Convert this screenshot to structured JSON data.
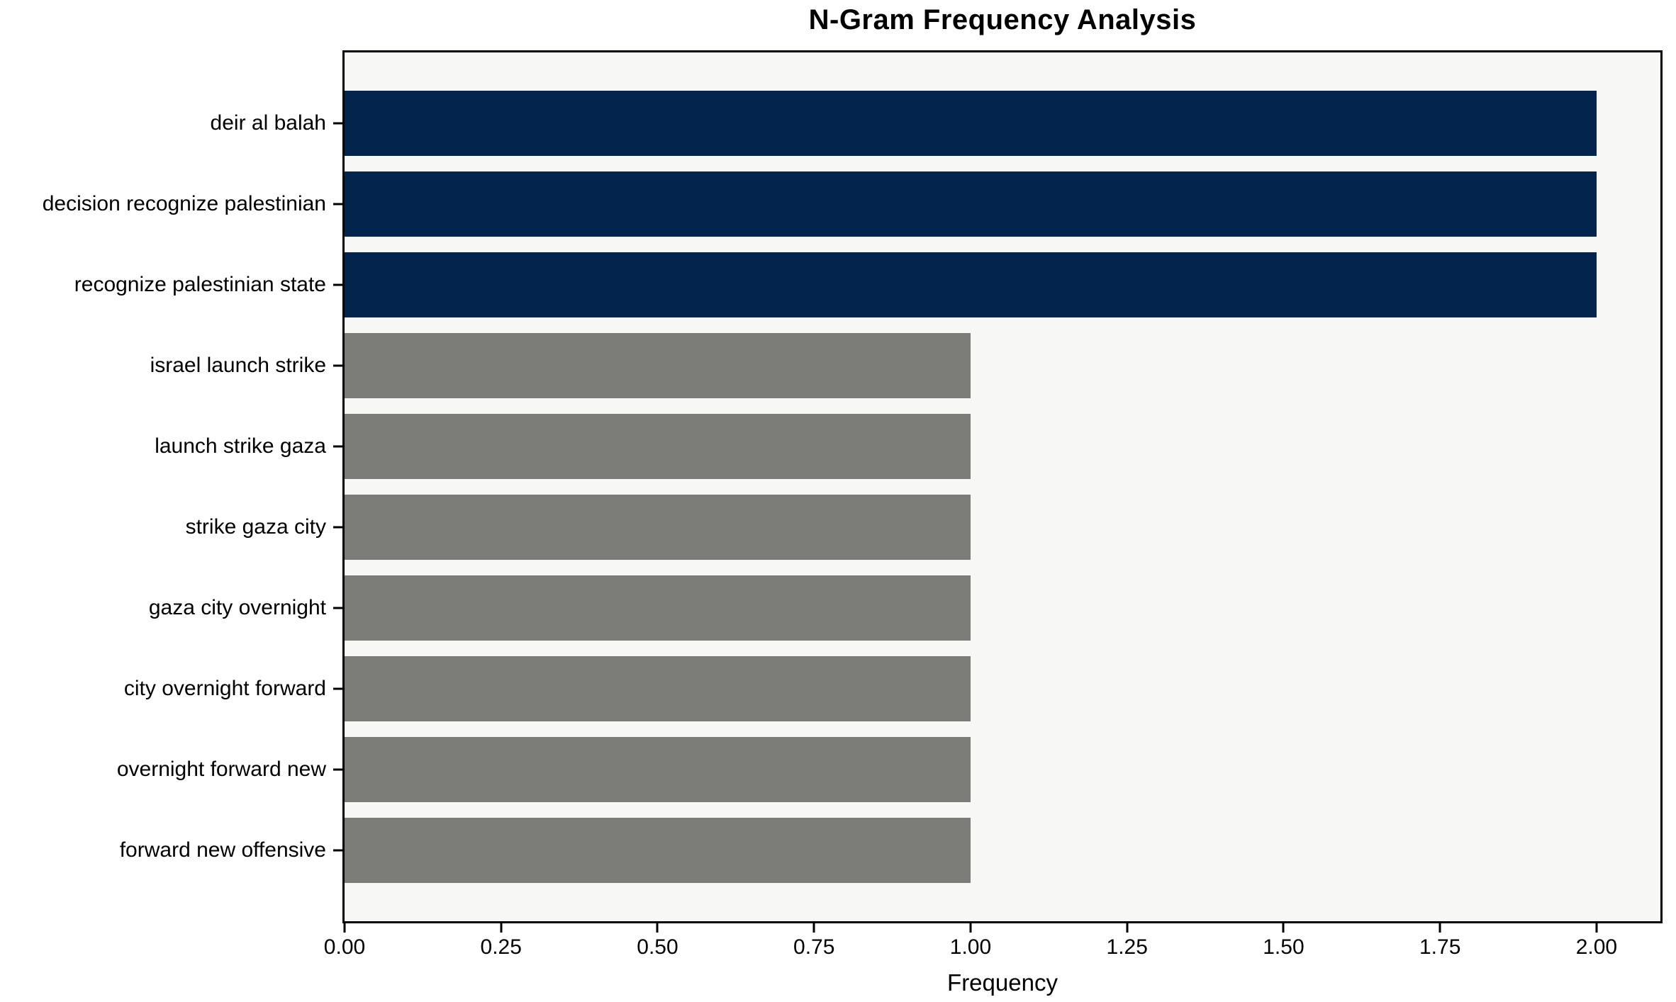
{
  "chart_data": {
    "type": "bar",
    "orientation": "horizontal",
    "title": "N-Gram Frequency Analysis",
    "xlabel": "Frequency",
    "ylabel": "",
    "categories": [
      "deir al balah",
      "decision recognize palestinian",
      "recognize palestinian state",
      "israel launch strike",
      "launch strike gaza",
      "strike gaza city",
      "gaza city overnight",
      "city overnight forward",
      "overnight forward new",
      "forward new offensive"
    ],
    "values": [
      2,
      2,
      2,
      1,
      1,
      1,
      1,
      1,
      1,
      1
    ],
    "bar_colors": [
      "#03254d",
      "#03254d",
      "#03254d",
      "#7b7b78",
      "#7b7b78",
      "#7b7b78",
      "#7b7b78",
      "#7b7b78",
      "#7b7b78",
      "#7b7b78"
    ],
    "x_tick_labels": [
      "0.00",
      "0.25",
      "0.50",
      "0.75",
      "1.00",
      "1.25",
      "1.50",
      "1.75",
      "2.00"
    ],
    "x_tick_values": [
      0,
      0.25,
      0.5,
      0.75,
      1.0,
      1.25,
      1.5,
      1.75,
      2.0
    ],
    "xlim": [
      0,
      2.102
    ],
    "grid": false,
    "legend_position": "none",
    "colors": {
      "highlight_bar": "#03254d",
      "default_bar": "#7b7b78",
      "plot_background": "#f7f7f6",
      "figure_background": "#ffffff",
      "axis_line": "#000000",
      "text": "#000000"
    }
  }
}
